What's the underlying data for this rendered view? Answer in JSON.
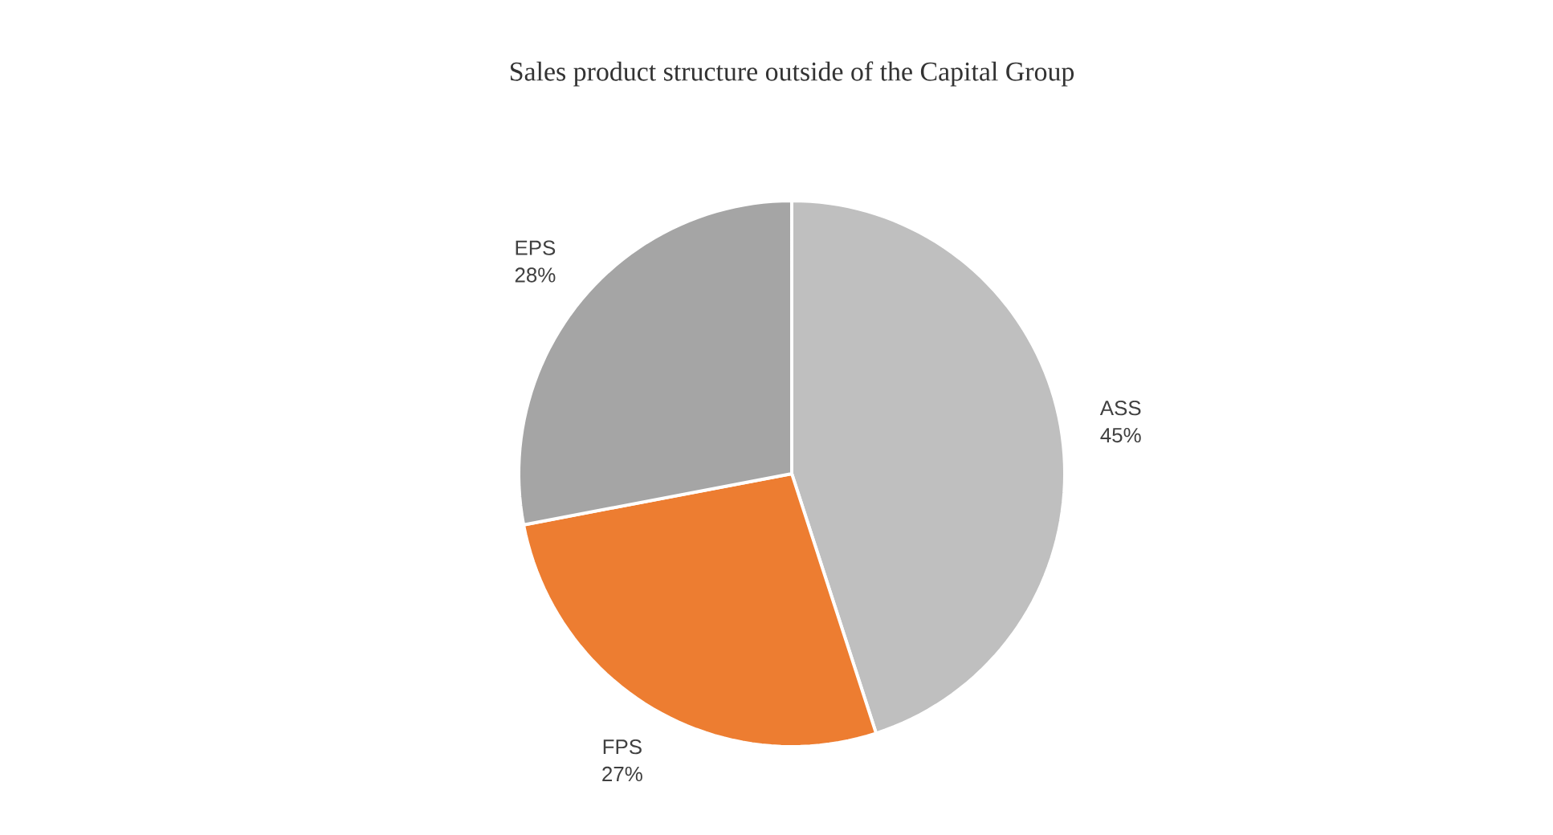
{
  "chart_data": {
    "type": "pie",
    "title": "Sales product structure outside of the Capital Group",
    "categories": [
      "ASS",
      "FPS",
      "EPS"
    ],
    "values": [
      45,
      27,
      28
    ],
    "value_labels": [
      "45%",
      "27%",
      "28%"
    ],
    "colors": [
      "#bfbfbf",
      "#ed7d31",
      "#a5a5a5"
    ]
  }
}
